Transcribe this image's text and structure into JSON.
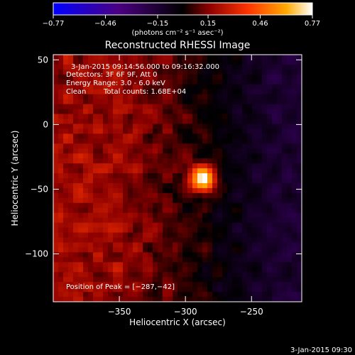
{
  "colorbar": {
    "ticks": [
      "−0.77",
      "−0.46",
      "−0.15",
      "0.15",
      "0.46",
      "0.77"
    ],
    "tick_values": [
      -0.77,
      -0.46,
      -0.15,
      0.15,
      0.46,
      0.77
    ],
    "range": [
      -0.77,
      0.77
    ],
    "unit_label": "(photons cm⁻² s⁻¹ asec⁻²)"
  },
  "chart_data": {
    "type": "heatmap",
    "title": "Reconstructed RHESSI Image",
    "xlabel": "Heliocentric X (arcsec)",
    "ylabel": "Heliocentric Y (arcsec)",
    "xlim": [
      -400,
      -212
    ],
    "ylim": [
      -137,
      54
    ],
    "x_ticks": [
      -350,
      -300,
      -250
    ],
    "x_tick_labels": [
      "−350",
      "−300",
      "−250"
    ],
    "y_ticks": [
      50,
      0,
      -50,
      -100
    ],
    "y_tick_labels": [
      "50",
      "0",
      "−50",
      "−100"
    ],
    "peak": {
      "x": -287,
      "y": -42
    },
    "colormap_stops": [
      "#0000ff",
      "#4b0082",
      "#000000",
      "#8b0000",
      "#ff3300",
      "#ffaa00",
      "#ffffff"
    ],
    "annotations": {
      "time_range": "3-Jan-2015 09:14:56.000 to 09:16:32.000",
      "detectors": "Detectors: 3F 6F 9F, Att 0",
      "energy": "Energy Range: 3.0 - 6.0 keV",
      "clean": "Clean",
      "counts": "Total counts: 1.68E+04",
      "peak_text": "Position of Peak = [−287,−42]"
    }
  },
  "footer": {
    "timestamp": "3-Jan-2015 09:30"
  }
}
